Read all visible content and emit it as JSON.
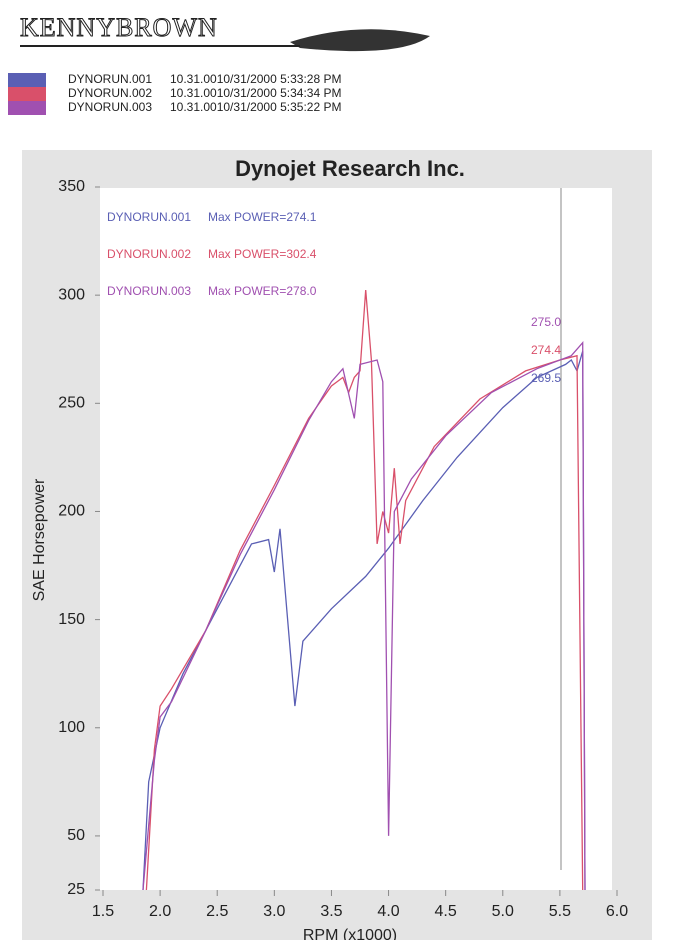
{
  "brand": "KENNYBROWN",
  "chart_data": {
    "type": "line",
    "title": "Dynojet Research Inc.",
    "ylabel": "SAE Horsepower",
    "xlabel": "RPM (x1000)",
    "xlim": [
      1.5,
      6.0
    ],
    "xticks": [
      {
        "value": 1.5,
        "label": "1.5"
      },
      {
        "value": 2,
        "label": "2.0"
      },
      {
        "value": 2.5,
        "label": "2.5"
      },
      {
        "value": 3,
        "label": "3.0"
      },
      {
        "value": 3.5,
        "label": "3.5"
      },
      {
        "value": 4,
        "label": "4.0"
      },
      {
        "value": 4.5,
        "label": "4.5"
      },
      {
        "value": 5,
        "label": "5.0"
      },
      {
        "value": 5.5,
        "label": "5.5"
      },
      {
        "value": 6,
        "label": "6.0"
      }
    ],
    "ylim": [
      25,
      350
    ],
    "yticks": [
      25,
      50,
      100,
      150,
      200,
      250,
      300,
      350
    ],
    "series": [
      {
        "name": "DYNORUN.001",
        "timestamp": "10.31.0010/31/2000 5:33:28 PM",
        "color": "#5a5fb4",
        "annotation": "Max POWER=274.1",
        "x": [
          1.85,
          1.9,
          2.0,
          2.2,
          2.5,
          2.8,
          2.95,
          3.0,
          3.05,
          3.1,
          3.18,
          3.25,
          3.5,
          3.8,
          4.0,
          4.3,
          4.6,
          5.0,
          5.3,
          5.55,
          5.6,
          5.65,
          5.7,
          5.72
        ],
        "values": [
          25,
          75,
          100,
          125,
          155,
          185,
          187,
          172,
          192,
          160,
          110,
          140,
          155,
          170,
          183,
          205,
          225,
          248,
          262,
          268,
          270,
          265,
          274.1,
          25
        ]
      },
      {
        "name": "DYNORUN.002",
        "timestamp": "10.31.0010/31/2000 5:34:34 PM",
        "color": "#d9506a",
        "annotation": "Max POWER=302.4",
        "x": [
          1.88,
          1.95,
          2.0,
          2.1,
          2.4,
          2.7,
          3.0,
          3.3,
          3.5,
          3.6,
          3.65,
          3.7,
          3.75,
          3.8,
          3.85,
          3.9,
          3.95,
          4.0,
          4.05,
          4.1,
          4.15,
          4.4,
          4.8,
          5.2,
          5.5,
          5.65,
          5.7
        ],
        "values": [
          25,
          90,
          110,
          118,
          145,
          182,
          212,
          243,
          258,
          262,
          255,
          262,
          265,
          302.4,
          270,
          185,
          200,
          190,
          220,
          185,
          205,
          230,
          252,
          265,
          270,
          272,
          25
        ]
      },
      {
        "name": "DYNORUN.003",
        "timestamp": "10.31.0010/31/2000 5:35:22 PM",
        "color": "#a050b0",
        "annotation": "Max POWER=278.0",
        "x": [
          1.85,
          1.95,
          2.0,
          2.1,
          2.4,
          2.7,
          3.0,
          3.3,
          3.5,
          3.6,
          3.7,
          3.75,
          3.9,
          3.95,
          4.0,
          4.05,
          4.2,
          4.5,
          4.9,
          5.3,
          5.6,
          5.7,
          5.72
        ],
        "values": [
          25,
          85,
          105,
          112,
          145,
          180,
          210,
          242,
          260,
          266,
          243,
          268,
          270,
          260,
          50,
          200,
          215,
          235,
          255,
          266,
          272,
          278,
          25
        ]
      }
    ],
    "point_labels": [
      "269.5",
      "274.4",
      "275.0"
    ]
  }
}
